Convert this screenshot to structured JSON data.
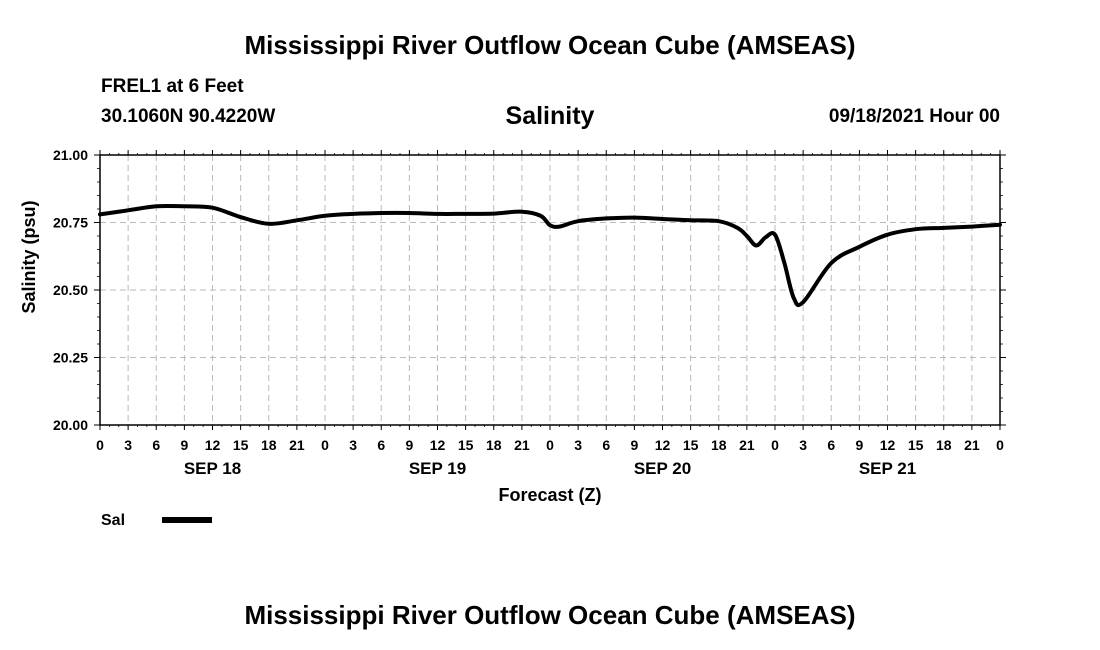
{
  "header": {
    "title": "Mississippi River Outflow Ocean Cube (AMSEAS)",
    "station": "FREL1 at 6 Feet",
    "coords": "30.1060N  90.4220W",
    "run_time": "09/18/2021 Hour 00"
  },
  "footer": {
    "title": "Mississippi River Outflow Ocean Cube (AMSEAS)"
  },
  "colors": {
    "line": "#000000",
    "grid": "#bbbbbb"
  },
  "chart_data": {
    "type": "line",
    "title": "Salinity",
    "xlabel": "Forecast (Z)",
    "ylabel": "Salinity (psu)",
    "ylim": [
      20.0,
      21.0
    ],
    "xlim": [
      0,
      96
    ],
    "grid": true,
    "y_ticks": [
      {
        "value": 20.0,
        "label": "20.00"
      },
      {
        "value": 20.25,
        "label": "20.25"
      },
      {
        "value": 20.5,
        "label": "20.50"
      },
      {
        "value": 20.75,
        "label": "20.75"
      },
      {
        "value": 21.0,
        "label": "21.00"
      }
    ],
    "x_ticks": [
      "0",
      "3",
      "6",
      "9",
      "12",
      "15",
      "18",
      "21",
      "0",
      "3",
      "6",
      "9",
      "12",
      "15",
      "18",
      "21",
      "0",
      "3",
      "6",
      "9",
      "12",
      "15",
      "18",
      "21",
      "0",
      "3",
      "6",
      "9",
      "12",
      "15",
      "18",
      "21",
      "0"
    ],
    "date_labels": [
      {
        "hour": 12,
        "label": "SEP 18"
      },
      {
        "hour": 36,
        "label": "SEP 19"
      },
      {
        "hour": 60,
        "label": "SEP 20"
      },
      {
        "hour": 84,
        "label": "SEP 21"
      }
    ],
    "legend": {
      "label": "Sal",
      "position": "bottom-left"
    },
    "series": [
      {
        "name": "Sal",
        "x": [
          0,
          3,
          6,
          9,
          12,
          15,
          18,
          21,
          24,
          27,
          30,
          33,
          36,
          39,
          42,
          45,
          47,
          48,
          49,
          51,
          54,
          57,
          60,
          63,
          66,
          68,
          69,
          70,
          71,
          72,
          73,
          74,
          75,
          78,
          81,
          84,
          87,
          90,
          93,
          96
        ],
        "values": [
          20.78,
          20.795,
          20.81,
          20.81,
          20.805,
          20.77,
          20.745,
          20.758,
          20.775,
          20.782,
          20.785,
          20.785,
          20.782,
          20.782,
          20.783,
          20.79,
          20.775,
          20.74,
          20.735,
          20.755,
          20.765,
          20.768,
          20.763,
          20.758,
          20.755,
          20.73,
          20.7,
          20.665,
          20.695,
          20.705,
          20.6,
          20.47,
          20.455,
          20.6,
          20.66,
          20.705,
          20.725,
          20.73,
          20.735,
          20.742
        ]
      }
    ]
  }
}
